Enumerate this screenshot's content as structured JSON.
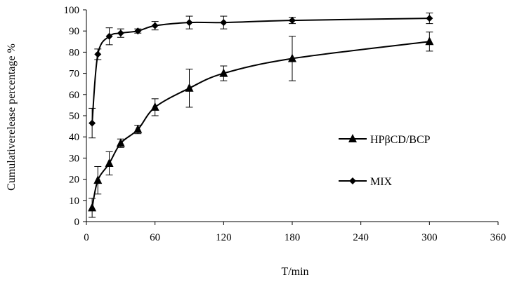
{
  "chart_data": {
    "type": "line",
    "title": "",
    "xlabel": "T/min",
    "ylabel": "Cumulativerelease percentage %",
    "xlim": [
      0,
      360
    ],
    "ylim": [
      0,
      100
    ],
    "xticks": [
      0,
      60,
      120,
      180,
      240,
      300,
      360
    ],
    "yticks": [
      0,
      10,
      20,
      30,
      40,
      50,
      60,
      70,
      80,
      90,
      100
    ],
    "grid": false,
    "legend_position": "right",
    "series": [
      {
        "name": "HPβCD/BCP",
        "marker": "triangle",
        "color": "#000000",
        "x": [
          5,
          10,
          20,
          30,
          45,
          60,
          90,
          120,
          180,
          300
        ],
        "y": [
          6.5,
          19.5,
          27.5,
          37,
          43.5,
          54,
          63,
          70,
          77,
          85
        ],
        "error": [
          4.5,
          6.5,
          5.5,
          2,
          2,
          4,
          9,
          3.5,
          10.5,
          4.5
        ]
      },
      {
        "name": "MIX",
        "marker": "diamond",
        "color": "#000000",
        "x": [
          5,
          10,
          20,
          30,
          45,
          60,
          90,
          120,
          180,
          300
        ],
        "y": [
          46.5,
          79,
          87.5,
          89,
          90,
          92.5,
          94,
          94,
          95,
          96
        ],
        "error": [
          7,
          2.5,
          4,
          2,
          1,
          2,
          3,
          3,
          1.5,
          2.5
        ]
      }
    ]
  }
}
